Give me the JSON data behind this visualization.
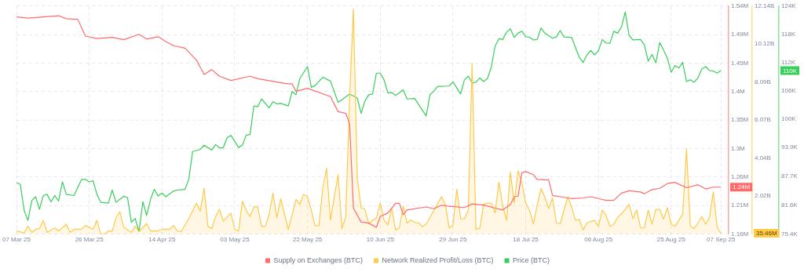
{
  "chart_data": {
    "type": "line",
    "grid": true,
    "legend": "bottom",
    "annotations": [
      "1.24M",
      "35.46M",
      "110K"
    ],
    "xlim": [
      "2025-03-07",
      "2025-09-09"
    ],
    "xticks": [
      {
        "value": "2025-03-07",
        "label": "07 Mar 25"
      },
      {
        "value": "2025-03-26",
        "label": "26 Mar 25"
      },
      {
        "value": "2025-04-14",
        "label": "14 Apr 25"
      },
      {
        "value": "2025-05-03",
        "label": "03 May 25"
      },
      {
        "value": "2025-05-22",
        "label": "22 May 25"
      },
      {
        "value": "2025-06-10",
        "label": "10 Jun 25"
      },
      {
        "value": "2025-06-29",
        "label": "29 Jun 25"
      },
      {
        "value": "2025-07-18",
        "label": "18 Jul 25"
      },
      {
        "value": "2025-08-06",
        "label": "06 Aug 25"
      },
      {
        "value": "2025-08-25",
        "label": "25 Aug 25"
      },
      {
        "value": "2025-09-07",
        "label": "07 Sep 25"
      }
    ],
    "ylim": [
      1160000,
      1540000
    ],
    "yticks": [
      {
        "value": 1160000,
        "label": "1.16M"
      },
      {
        "value": 1207500,
        "label": "1.21M"
      },
      {
        "value": 1255000,
        "label": "1.26M"
      },
      {
        "value": 1302500,
        "label": "1.3M"
      },
      {
        "value": 1350000,
        "label": "1.35M"
      },
      {
        "value": 1397500,
        "label": "1.4M"
      },
      {
        "value": 1445000,
        "label": "1.45M"
      },
      {
        "value": 1492500,
        "label": "1.49M"
      },
      {
        "value": 1540000,
        "label": "1.54M"
      }
    ],
    "y2lim": [
      0,
      12140000000
    ],
    "y2ticks": [
      {
        "value": 2020000000,
        "label": "2.02B"
      },
      {
        "value": 4040000000,
        "label": "4.04B"
      },
      {
        "value": 6070000000,
        "label": "6.07B"
      },
      {
        "value": 8090000000,
        "label": "8.09B"
      },
      {
        "value": 10120000000,
        "label": "10.12B"
      },
      {
        "value": 12140000000,
        "label": "12.14B"
      }
    ],
    "y3lim": [
      75400,
      124000
    ],
    "y3ticks": [
      {
        "value": 75400,
        "label": "75.4K"
      },
      {
        "value": 81600,
        "label": "81.6K"
      },
      {
        "value": 87700,
        "label": "87.7K"
      },
      {
        "value": 93900,
        "label": "93.9K"
      },
      {
        "value": 100000,
        "label": "100K"
      },
      {
        "value": 106000,
        "label": "106K"
      },
      {
        "value": 112000,
        "label": "112K"
      },
      {
        "value": 118000,
        "label": "118K"
      },
      {
        "value": 124000,
        "label": "124K"
      }
    ],
    "series": [
      {
        "name": "Supply on Exchanges (BTC)",
        "color": "#ff6b6b",
        "axis": "y",
        "x": [
          "2025-03-07",
          "2025-03-10",
          "2025-03-18",
          "2025-03-20",
          "2025-03-23",
          "2025-03-25",
          "2025-03-28",
          "2025-04-01",
          "2025-04-04",
          "2025-04-08",
          "2025-04-10",
          "2025-04-13",
          "2025-04-15",
          "2025-04-17",
          "2025-04-20",
          "2025-04-23",
          "2025-04-25",
          "2025-04-27",
          "2025-04-29",
          "2025-05-02",
          "2025-05-07",
          "2025-05-09",
          "2025-05-16",
          "2025-05-18",
          "2025-05-19",
          "2025-05-22",
          "2025-05-28",
          "2025-05-30",
          "2025-06-01",
          "2025-06-02",
          "2025-06-03",
          "2025-06-05",
          "2025-06-07",
          "2025-06-09",
          "2025-06-10",
          "2025-06-12",
          "2025-06-14",
          "2025-06-15",
          "2025-06-16",
          "2025-06-17",
          "2025-06-22",
          "2025-06-24",
          "2025-06-26",
          "2025-06-28",
          "2025-07-02",
          "2025-07-04",
          "2025-07-07",
          "2025-07-10",
          "2025-07-12",
          "2025-07-14",
          "2025-07-15",
          "2025-07-16",
          "2025-07-17",
          "2025-07-18",
          "2025-07-20",
          "2025-07-21",
          "2025-07-24",
          "2025-07-25",
          "2025-07-28",
          "2025-07-30",
          "2025-08-02",
          "2025-08-04",
          "2025-08-06",
          "2025-08-08",
          "2025-08-10",
          "2025-08-12",
          "2025-08-14",
          "2025-08-17",
          "2025-08-18",
          "2025-08-20",
          "2025-08-22",
          "2025-08-24",
          "2025-08-26",
          "2025-08-29",
          "2025-09-01",
          "2025-09-03",
          "2025-09-05",
          "2025-09-07"
        ],
        "values": [
          1522000,
          1520000,
          1524000,
          1519000,
          1518000,
          1490000,
          1486000,
          1488000,
          1484000,
          1493000,
          1485000,
          1489000,
          1481000,
          1474000,
          1470000,
          1450000,
          1426000,
          1434000,
          1423000,
          1416000,
          1423000,
          1419000,
          1411000,
          1410000,
          1398000,
          1403000,
          1389000,
          1364000,
          1361000,
          1344000,
          1203000,
          1180000,
          1178000,
          1171000,
          1189000,
          1195000,
          1211000,
          1211000,
          1192000,
          1200000,
          1205000,
          1202000,
          1208000,
          1206000,
          1204000,
          1210000,
          1208000,
          1203000,
          1200000,
          1209000,
          1222000,
          1223000,
          1262000,
          1264000,
          1259000,
          1251000,
          1250000,
          1224000,
          1221000,
          1219000,
          1220000,
          1222000,
          1219000,
          1216000,
          1216000,
          1228000,
          1232000,
          1230000,
          1227000,
          1234000,
          1236000,
          1244000,
          1246000,
          1237000,
          1242000,
          1235000,
          1238000,
          1238000
        ]
      },
      {
        "name": "Network Realized Profit/Loss (BTC)",
        "color": "#ffc94a",
        "axis": "y2",
        "type": "area",
        "x": [
          "2025-03-07",
          "2025-03-09",
          "2025-03-10",
          "2025-03-11",
          "2025-03-12",
          "2025-03-13",
          "2025-03-14",
          "2025-03-15",
          "2025-03-17",
          "2025-03-18",
          "2025-03-20",
          "2025-03-21",
          "2025-03-22",
          "2025-03-24",
          "2025-03-25",
          "2025-03-27",
          "2025-03-28",
          "2025-03-29",
          "2025-03-30",
          "2025-03-31",
          "2025-04-01",
          "2025-04-02",
          "2025-04-03",
          "2025-04-04",
          "2025-04-06",
          "2025-04-07",
          "2025-04-08",
          "2025-04-10",
          "2025-04-11",
          "2025-04-13",
          "2025-04-14",
          "2025-04-16",
          "2025-04-17",
          "2025-04-18",
          "2025-04-19",
          "2025-04-21",
          "2025-04-23",
          "2025-04-24",
          "2025-04-25",
          "2025-04-26",
          "2025-04-27",
          "2025-04-28",
          "2025-04-29",
          "2025-04-30",
          "2025-05-02",
          "2025-05-03",
          "2025-05-04",
          "2025-05-05",
          "2025-05-06",
          "2025-05-07",
          "2025-05-08",
          "2025-05-09",
          "2025-05-10",
          "2025-05-11",
          "2025-05-12",
          "2025-05-13",
          "2025-05-14",
          "2025-05-15",
          "2025-05-16",
          "2025-05-17",
          "2025-05-19",
          "2025-05-20",
          "2025-05-21",
          "2025-05-22",
          "2025-05-23",
          "2025-05-24",
          "2025-05-25",
          "2025-05-26",
          "2025-05-27",
          "2025-05-28",
          "2025-05-30",
          "2025-05-31",
          "2025-06-01",
          "2025-06-02",
          "2025-06-03",
          "2025-06-04",
          "2025-06-05",
          "2025-06-06",
          "2025-06-07",
          "2025-06-08",
          "2025-06-09",
          "2025-06-10",
          "2025-06-11",
          "2025-06-12",
          "2025-06-13",
          "2025-06-14",
          "2025-06-15",
          "2025-06-16",
          "2025-06-17",
          "2025-06-18",
          "2025-06-19",
          "2025-06-20",
          "2025-06-21",
          "2025-06-22",
          "2025-06-26",
          "2025-06-27",
          "2025-06-28",
          "2025-06-29",
          "2025-06-30",
          "2025-07-01",
          "2025-07-02",
          "2025-07-03",
          "2025-07-04",
          "2025-07-05",
          "2025-07-06",
          "2025-07-07",
          "2025-07-08",
          "2025-07-09",
          "2025-07-10",
          "2025-07-11",
          "2025-07-12",
          "2025-07-13",
          "2025-07-14",
          "2025-07-15",
          "2025-07-16",
          "2025-07-17",
          "2025-07-18",
          "2025-07-19",
          "2025-07-20",
          "2025-07-21",
          "2025-07-22",
          "2025-07-23",
          "2025-07-24",
          "2025-07-25",
          "2025-07-26",
          "2025-07-27",
          "2025-07-29",
          "2025-07-30",
          "2025-07-31",
          "2025-08-01",
          "2025-08-02",
          "2025-08-03",
          "2025-08-05",
          "2025-08-06",
          "2025-08-07",
          "2025-08-08",
          "2025-08-09",
          "2025-08-10",
          "2025-08-11",
          "2025-08-12",
          "2025-08-13",
          "2025-08-14",
          "2025-08-15",
          "2025-08-16",
          "2025-08-17",
          "2025-08-18",
          "2025-08-19",
          "2025-08-20",
          "2025-08-21",
          "2025-08-22",
          "2025-08-23",
          "2025-08-24",
          "2025-08-25",
          "2025-08-26",
          "2025-08-27",
          "2025-08-28",
          "2025-08-29",
          "2025-08-30",
          "2025-08-31",
          "2025-09-01",
          "2025-09-02",
          "2025-09-03",
          "2025-09-04",
          "2025-09-05",
          "2025-09-06",
          "2025-09-07"
        ],
        "values": [
          160000000.0,
          50000000.0,
          410000000.0,
          80000000.0,
          250000000.0,
          280000000.0,
          720000000.0,
          80000000.0,
          320000000.0,
          150000000.0,
          520000000.0,
          80000000.0,
          250000000.0,
          250000000.0,
          450000000.0,
          250000000.0,
          720000000.0,
          0,
          0,
          150000000.0,
          150000000.0,
          850000000.0,
          1180000000.0,
          360000000.0,
          80000000.0,
          410000000.0,
          120000000.0,
          550000000.0,
          150000000.0,
          150000000.0,
          250000000.0,
          250000000.0,
          450000000.0,
          160000000.0,
          120000000.0,
          820000000.0,
          1640000000.0,
          1210000000.0,
          2440000000.0,
          410000000.0,
          280000000.0,
          920000000.0,
          1310000000.0,
          680000000.0,
          1110000000.0,
          250000000.0,
          150000000.0,
          1740000000.0,
          1250000000.0,
          920000000.0,
          1440000000.0,
          1440000000.0,
          410000000.0,
          410000000.0,
          1050000000.0,
          2180000000.0,
          850000000.0,
          1880000000.0,
          1050000000.0,
          230000000.0,
          1840000000.0,
          1580000000.0,
          2110000000.0,
          1980000000.0,
          1250000000.0,
          430000000.0,
          450000000.0,
          2440000000.0,
          3500000000.0,
          740000000.0,
          3170000000.0,
          280000000.0,
          920000000.0,
          7220000000.0,
          11990000000.0,
          2970000000.0,
          1400000000.0,
          1310000000.0,
          550000000.0,
          720000000.0,
          850000000.0,
          1640000000.0,
          740000000.0,
          480000000.0,
          1380000000.0,
          210000000.0,
          320000000.0,
          1490000000.0,
          580000000.0,
          740000000.0,
          610000000.0,
          590000000.0,
          390000000.0,
          520000000.0,
          1980000000.0,
          1580000000.0,
          320000000.0,
          480000000.0,
          2380000000.0,
          810000000.0,
          810000000.0,
          1270000000.0,
          9070000000.0,
          250000000.0,
          280000000.0,
          1580000000.0,
          1640000000.0,
          1640000000.0,
          1110000000.0,
          2770000000.0,
          1510000000.0,
          720000000.0,
          3300000000.0,
          1640000000.0,
          3370000000.0,
          2710000000.0,
          1640000000.0,
          1270000000.0,
          520000000.0,
          1540000000.0,
          2420000000.0,
          1980000000.0,
          1350000000.0,
          1910000000.0,
          590000000.0,
          550000000.0,
          1980000000.0,
          1440000000.0,
          720000000.0,
          780000000.0,
          210000000.0,
          590000000.0,
          720000000.0,
          410000000.0,
          1270000000.0,
          980000000.0,
          390000000.0,
          520000000.0,
          880000000.0,
          1070000000.0,
          1310000000.0,
          1580000000.0,
          810000000.0,
          1270000000.0,
          320000000.0,
          320000000.0,
          1270000000.0,
          520000000.0,
          1310000000.0,
          1310000000.0,
          780000000.0,
          1400000000.0,
          520000000.0,
          410000000.0,
          720000000.0,
          1050000000.0,
          4540000000.0,
          410000000.0,
          280000000.0,
          590000000.0,
          920000000.0,
          520000000.0,
          880000000.0,
          2240000000.0,
          350000000.0,
          35460000.0
        ]
      },
      {
        "name": "Price (BTC)",
        "color": "#37cf5a",
        "axis": "y3",
        "x": [
          "2025-03-07",
          "2025-03-08",
          "2025-03-09",
          "2025-03-10",
          "2025-03-11",
          "2025-03-12",
          "2025-03-13",
          "2025-03-14",
          "2025-03-15",
          "2025-03-16",
          "2025-03-17",
          "2025-03-18",
          "2025-03-19",
          "2025-03-20",
          "2025-03-22",
          "2025-03-24",
          "2025-03-25",
          "2025-03-26",
          "2025-03-27",
          "2025-03-28",
          "2025-03-29",
          "2025-03-31",
          "2025-04-01",
          "2025-04-02",
          "2025-04-04",
          "2025-04-05",
          "2025-04-06",
          "2025-04-07",
          "2025-04-08",
          "2025-04-09",
          "2025-04-10",
          "2025-04-11",
          "2025-04-12",
          "2025-04-13",
          "2025-04-14",
          "2025-04-15",
          "2025-04-17",
          "2025-04-18",
          "2025-04-20",
          "2025-04-21",
          "2025-04-22",
          "2025-04-24",
          "2025-04-25",
          "2025-04-27",
          "2025-04-28",
          "2025-04-29",
          "2025-04-30",
          "2025-05-01",
          "2025-05-02",
          "2025-05-04",
          "2025-05-05",
          "2025-05-06",
          "2025-05-07",
          "2025-05-08",
          "2025-05-09",
          "2025-05-10",
          "2025-05-12",
          "2025-05-13",
          "2025-05-14",
          "2025-05-15",
          "2025-05-17",
          "2025-05-18",
          "2025-05-19",
          "2025-05-20",
          "2025-05-22",
          "2025-05-23",
          "2025-05-24",
          "2025-05-26",
          "2025-05-28",
          "2025-05-30",
          "2025-05-31",
          "2025-06-02",
          "2025-06-04",
          "2025-06-05",
          "2025-06-06",
          "2025-06-07",
          "2025-06-08",
          "2025-06-09",
          "2025-06-10",
          "2025-06-11",
          "2025-06-12",
          "2025-06-13",
          "2025-06-14",
          "2025-06-16",
          "2025-06-17",
          "2025-06-19",
          "2025-06-22",
          "2025-06-23",
          "2025-06-24",
          "2025-06-25",
          "2025-06-28",
          "2025-06-29",
          "2025-07-01",
          "2025-07-02",
          "2025-07-03",
          "2025-07-04",
          "2025-07-05",
          "2025-07-06",
          "2025-07-07",
          "2025-07-08",
          "2025-07-09",
          "2025-07-10",
          "2025-07-11",
          "2025-07-12",
          "2025-07-13",
          "2025-07-14",
          "2025-07-15",
          "2025-07-16",
          "2025-07-17",
          "2025-07-18",
          "2025-07-19",
          "2025-07-20",
          "2025-07-21",
          "2025-07-22",
          "2025-07-23",
          "2025-07-25",
          "2025-07-26",
          "2025-07-27",
          "2025-07-28",
          "2025-07-30",
          "2025-08-01",
          "2025-08-02",
          "2025-08-03",
          "2025-08-04",
          "2025-08-05",
          "2025-08-06",
          "2025-08-07",
          "2025-08-08",
          "2025-08-09",
          "2025-08-10",
          "2025-08-11",
          "2025-08-12",
          "2025-08-13",
          "2025-08-14",
          "2025-08-15",
          "2025-08-17",
          "2025-08-18",
          "2025-08-19",
          "2025-08-20",
          "2025-08-21",
          "2025-08-22",
          "2025-08-23",
          "2025-08-24",
          "2025-08-25",
          "2025-08-26",
          "2025-08-27",
          "2025-08-28",
          "2025-08-29",
          "2025-08-30",
          "2025-08-31",
          "2025-09-01",
          "2025-09-02",
          "2025-09-03",
          "2025-09-04",
          "2025-09-05",
          "2025-09-06",
          "2025-09-07"
        ],
        "values": [
          86350,
          85970,
          80390,
          78270,
          82520,
          83320,
          80660,
          83580,
          83850,
          82250,
          83580,
          82410,
          86510,
          83850,
          83580,
          87030,
          87030,
          86510,
          86760,
          83850,
          82140,
          81980,
          84750,
          82140,
          83420,
          83160,
          77900,
          78700,
          75880,
          82250,
          79340,
          82780,
          84910,
          83480,
          84120,
          83320,
          84530,
          84750,
          84910,
          87030,
          92980,
          93410,
          94320,
          93300,
          94470,
          93770,
          93770,
          95910,
          96430,
          93840,
          94320,
          96480,
          96590,
          102700,
          102540,
          104190,
          102280,
          103600,
          103130,
          103240,
          102700,
          105790,
          105090,
          108540,
          111090,
          106680,
          107060,
          108820,
          108020,
          103490,
          104030,
          105250,
          104400,
          101100,
          103760,
          105090,
          105250,
          109710,
          109710,
          108270,
          105470,
          105560,
          104930,
          106150,
          104190,
          104290,
          100580,
          105090,
          105880,
          106840,
          106950,
          107860,
          105250,
          108270,
          109070,
          107590,
          107750,
          108700,
          107910,
          108540,
          110930,
          115440,
          117040,
          116880,
          118470,
          119170,
          117310,
          118260,
          118630,
          117470,
          117360,
          116780,
          116880,
          119330,
          118220,
          117150,
          117420,
          118790,
          117420,
          117310,
          113050,
          112000,
          113600,
          114550,
          113600,
          114490,
          116880,
          116140,
          116080,
          118630,
          118220,
          119540,
          122730,
          117740,
          116780,
          116880,
          115710,
          112260,
          113690,
          111890,
          116240,
          114650,
          112890,
          109870,
          111300,
          110780,
          112000,
          107910,
          108270,
          107750,
          108700,
          110570,
          111090,
          110250,
          110140,
          109710,
          110250
        ]
      }
    ]
  }
}
